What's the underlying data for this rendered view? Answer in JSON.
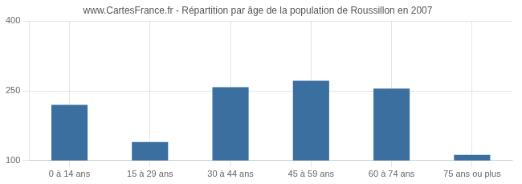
{
  "chart_data": {
    "type": "bar",
    "title": "www.CartesFrance.fr - Répartition par âge de la population de Roussillon en 2007",
    "categories": [
      "0 à 14 ans",
      "15 à 29 ans",
      "30 à 44 ans",
      "45 à 59 ans",
      "60 à 74 ans",
      "75 ans ou plus"
    ],
    "values": [
      220,
      140,
      258,
      272,
      255,
      112
    ],
    "color": "#3a6f9f",
    "ylim": [
      100,
      400
    ],
    "yticks": [
      100,
      250,
      400
    ],
    "grid": true
  }
}
